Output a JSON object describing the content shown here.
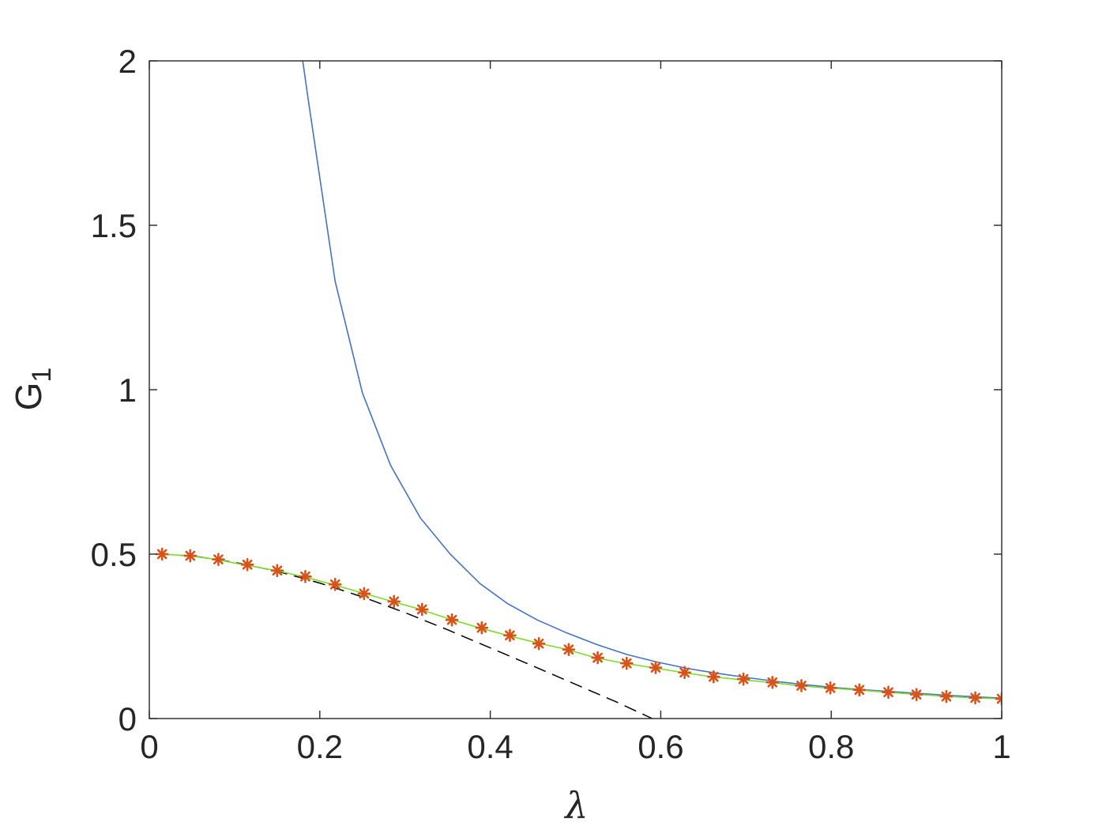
{
  "chart_data": {
    "type": "line",
    "title": "",
    "xlabel": "λ",
    "ylabel": "G",
    "ylabel_subscript": "1",
    "xlim": [
      0,
      1
    ],
    "ylim": [
      0,
      2
    ],
    "xticks": [
      0,
      0.2,
      0.4,
      0.6,
      0.8,
      1
    ],
    "yticks": [
      0,
      0.5,
      1,
      1.5,
      2
    ],
    "xtick_labels": [
      "0",
      "0.2",
      "0.4",
      "0.6",
      "0.8",
      "1"
    ],
    "ytick_labels": [
      "0",
      "0.5",
      "1",
      "1.5",
      "2"
    ],
    "grid": false,
    "series": [
      {
        "style": "solid",
        "color": "#4472c4",
        "x": [
          0.18,
          0.186,
          0.218,
          0.25,
          0.283,
          0.318,
          0.353,
          0.388,
          0.42,
          0.455,
          0.49,
          0.525,
          0.56,
          0.595,
          0.63,
          0.665,
          0.7,
          0.735,
          0.77,
          0.8,
          0.835,
          0.87,
          0.9,
          0.935,
          0.97,
          1.0
        ],
        "y": [
          2.0,
          1.89,
          1.33,
          0.99,
          0.77,
          0.61,
          0.5,
          0.41,
          0.35,
          0.3,
          0.26,
          0.225,
          0.195,
          0.172,
          0.153,
          0.138,
          0.125,
          0.113,
          0.103,
          0.095,
          0.088,
          0.082,
          0.077,
          0.071,
          0.066,
          0.062
        ]
      },
      {
        "style": "dashed",
        "color": "#000000",
        "x": [
          0.01,
          0.05,
          0.1,
          0.15,
          0.2,
          0.25,
          0.3,
          0.35,
          0.4,
          0.45,
          0.5,
          0.55,
          0.59
        ],
        "y": [
          0.5,
          0.495,
          0.475,
          0.448,
          0.412,
          0.37,
          0.322,
          0.27,
          0.215,
          0.16,
          0.104,
          0.048,
          0.0
        ]
      },
      {
        "style": "solid",
        "color": "#7fdc2a",
        "x": [
          0.01,
          0.043,
          0.076,
          0.11,
          0.145,
          0.18,
          0.215,
          0.25,
          0.285,
          0.318,
          0.352,
          0.387,
          0.42,
          0.455,
          0.49,
          0.523,
          0.557,
          0.59,
          0.626,
          0.66,
          0.695,
          0.728,
          0.762,
          0.795,
          0.83,
          0.865,
          0.898,
          0.932,
          0.966,
          1.0
        ],
        "y": [
          0.5,
          0.496,
          0.485,
          0.468,
          0.452,
          0.432,
          0.408,
          0.382,
          0.356,
          0.332,
          0.303,
          0.276,
          0.253,
          0.23,
          0.21,
          0.185,
          0.168,
          0.155,
          0.14,
          0.127,
          0.118,
          0.11,
          0.1,
          0.093,
          0.087,
          0.08,
          0.074,
          0.068,
          0.063,
          0.06
        ]
      },
      {
        "style": "markers",
        "marker": "asterisk",
        "color": "#d95319",
        "x": [
          0.015,
          0.048,
          0.081,
          0.115,
          0.15,
          0.183,
          0.218,
          0.252,
          0.287,
          0.32,
          0.355,
          0.39,
          0.423,
          0.457,
          0.492,
          0.526,
          0.56,
          0.594,
          0.628,
          0.662,
          0.697,
          0.731,
          0.765,
          0.799,
          0.833,
          0.867,
          0.9,
          0.935,
          0.969,
          1.0
        ],
        "y": [
          0.5,
          0.495,
          0.484,
          0.468,
          0.45,
          0.432,
          0.408,
          0.38,
          0.356,
          0.332,
          0.3,
          0.276,
          0.253,
          0.228,
          0.21,
          0.185,
          0.168,
          0.155,
          0.14,
          0.127,
          0.12,
          0.11,
          0.1,
          0.093,
          0.087,
          0.08,
          0.073,
          0.067,
          0.063,
          0.06
        ]
      }
    ]
  }
}
